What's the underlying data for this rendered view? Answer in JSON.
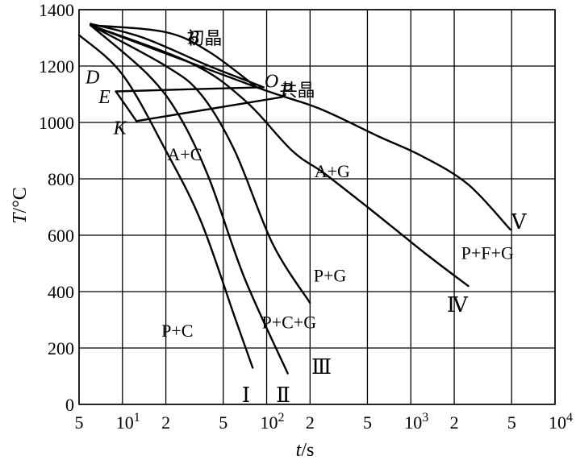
{
  "chart_data": {
    "type": "line",
    "xlabel_var": "t",
    "xlabel_unit": "/s",
    "ylabel_var": "T",
    "ylabel_unit": "/°C",
    "x_scale": "log",
    "xlim": [
      5,
      10000
    ],
    "ylim": [
      0,
      1400
    ],
    "grid": true,
    "x_ticks": [
      {
        "value": 5,
        "label": "5",
        "sup": ""
      },
      {
        "value": 10,
        "label": "10",
        "sup": "1"
      },
      {
        "value": 20,
        "label": "2",
        "sup": ""
      },
      {
        "value": 50,
        "label": "5",
        "sup": ""
      },
      {
        "value": 100,
        "label": "10",
        "sup": "2"
      },
      {
        "value": 200,
        "label": "2",
        "sup": ""
      },
      {
        "value": 500,
        "label": "5",
        "sup": ""
      },
      {
        "value": 1000,
        "label": "10",
        "sup": "3"
      },
      {
        "value": 2000,
        "label": "2",
        "sup": ""
      },
      {
        "value": 5000,
        "label": "5",
        "sup": ""
      },
      {
        "value": 10000,
        "label": "10",
        "sup": "4"
      }
    ],
    "y_ticks": [
      0,
      200,
      400,
      600,
      800,
      1000,
      1200,
      1400
    ],
    "curves": [
      {
        "name": "start-line",
        "points": [
          [
            5.0,
            1310
          ],
          [
            10.0,
            1170
          ],
          [
            20.0,
            900
          ],
          [
            35.0,
            650
          ],
          [
            60.0,
            310
          ],
          [
            80.0,
            130
          ]
        ]
      },
      {
        "name": "cooling-I",
        "points": [
          [
            6.0,
            1345
          ],
          [
            15.0,
            1170
          ],
          [
            25.0,
            1020
          ],
          [
            40.0,
            800
          ],
          [
            70.0,
            450
          ],
          [
            140.0,
            110
          ]
        ]
      },
      {
        "name": "cooling-II",
        "points": [
          [
            6.0,
            1345
          ],
          [
            20.0,
            1200
          ],
          [
            35.0,
            1100
          ],
          [
            60.0,
            900
          ],
          [
            110.0,
            570
          ],
          [
            200.0,
            360
          ]
        ]
      },
      {
        "name": "cooling-III",
        "points": [
          [
            6.0,
            1345
          ],
          [
            30.0,
            1210
          ],
          [
            70.0,
            1080
          ],
          [
            150.0,
            900
          ],
          [
            250.0,
            820
          ],
          [
            500.0,
            700
          ],
          [
            1300.0,
            530
          ],
          [
            2500.0,
            420
          ]
        ]
      },
      {
        "name": "cooling-IV",
        "points": [
          [
            6.0,
            1345
          ],
          [
            85.0,
            1125
          ],
          [
            230.0,
            1050
          ],
          [
            600.0,
            950
          ],
          [
            1200.0,
            880
          ],
          [
            2500.0,
            780
          ],
          [
            4900.0,
            620
          ]
        ]
      },
      {
        "name": "cooling-V",
        "points": [
          [
            6.0,
            1345
          ],
          [
            20.0,
            1320
          ],
          [
            40.0,
            1250
          ],
          [
            85.0,
            1125
          ]
        ]
      },
      {
        "name": "eutectic-start",
        "points": [
          [
            6.0,
            1350
          ],
          [
            14.0,
            1300
          ],
          [
            40.0,
            1200
          ],
          [
            80.0,
            1140
          ],
          [
            95.0,
            1125
          ]
        ]
      },
      {
        "name": "eutectic-start-line",
        "points": [
          [
            9.0,
            1110
          ],
          [
            95.0,
            1125
          ]
        ]
      },
      {
        "name": "eutectic-end-line",
        "points": [
          [
            12.5,
            1005
          ],
          [
            128.0,
            1090
          ]
        ]
      },
      {
        "name": "eutectic-end-tie",
        "points": [
          [
            9.0,
            1110
          ],
          [
            12.5,
            1005
          ]
        ]
      }
    ],
    "annotations": [
      {
        "name": "label-b",
        "text": "B",
        "x": 31,
        "y": 1295,
        "cls": "point"
      },
      {
        "name": "label-chujing",
        "text": "初晶",
        "x": 37,
        "y": 1295,
        "cls": "cjk"
      },
      {
        "name": "label-d",
        "text": "D",
        "x": 6.2,
        "y": 1155,
        "cls": "point"
      },
      {
        "name": "label-e",
        "text": "E",
        "x": 7.5,
        "y": 1085,
        "cls": "point"
      },
      {
        "name": "label-k",
        "text": "K",
        "x": 9.6,
        "y": 975,
        "cls": "point"
      },
      {
        "name": "label-o",
        "text": "O",
        "x": 108,
        "y": 1140,
        "cls": "point"
      },
      {
        "name": "label-p",
        "text": "P",
        "x": 138,
        "y": 1110,
        "cls": "point"
      },
      {
        "name": "label-gongjing",
        "text": "共晶",
        "x": 163,
        "y": 1110,
        "cls": "cjk"
      },
      {
        "name": "label-a-c",
        "text": "A+C",
        "x": 27,
        "y": 880,
        "cls": "region"
      },
      {
        "name": "label-a-g",
        "text": "A+G",
        "x": 285,
        "y": 820,
        "cls": "region"
      },
      {
        "name": "label-p-g",
        "text": "P+G",
        "x": 275,
        "y": 450,
        "cls": "region"
      },
      {
        "name": "label-p-c",
        "text": "P+C",
        "x": 24,
        "y": 255,
        "cls": "region"
      },
      {
        "name": "label-p-c-g",
        "text": "P+C+G",
        "x": 143,
        "y": 285,
        "cls": "region"
      },
      {
        "name": "label-p-f-g",
        "text": "P+F+G",
        "x": 3400,
        "y": 530,
        "cls": "region"
      },
      {
        "name": "label-i",
        "text": "Ⅰ",
        "x": 72,
        "y": 25,
        "cls": "roman"
      },
      {
        "name": "label-ii",
        "text": "Ⅱ",
        "x": 130,
        "y": 25,
        "cls": "roman"
      },
      {
        "name": "label-iii",
        "text": "Ⅲ",
        "x": 240,
        "y": 125,
        "cls": "roman"
      },
      {
        "name": "label-iv",
        "text": "Ⅳ",
        "x": 2100,
        "y": 345,
        "cls": "roman"
      },
      {
        "name": "label-v",
        "text": "Ⅴ",
        "x": 5600,
        "y": 640,
        "cls": "roman"
      }
    ]
  }
}
